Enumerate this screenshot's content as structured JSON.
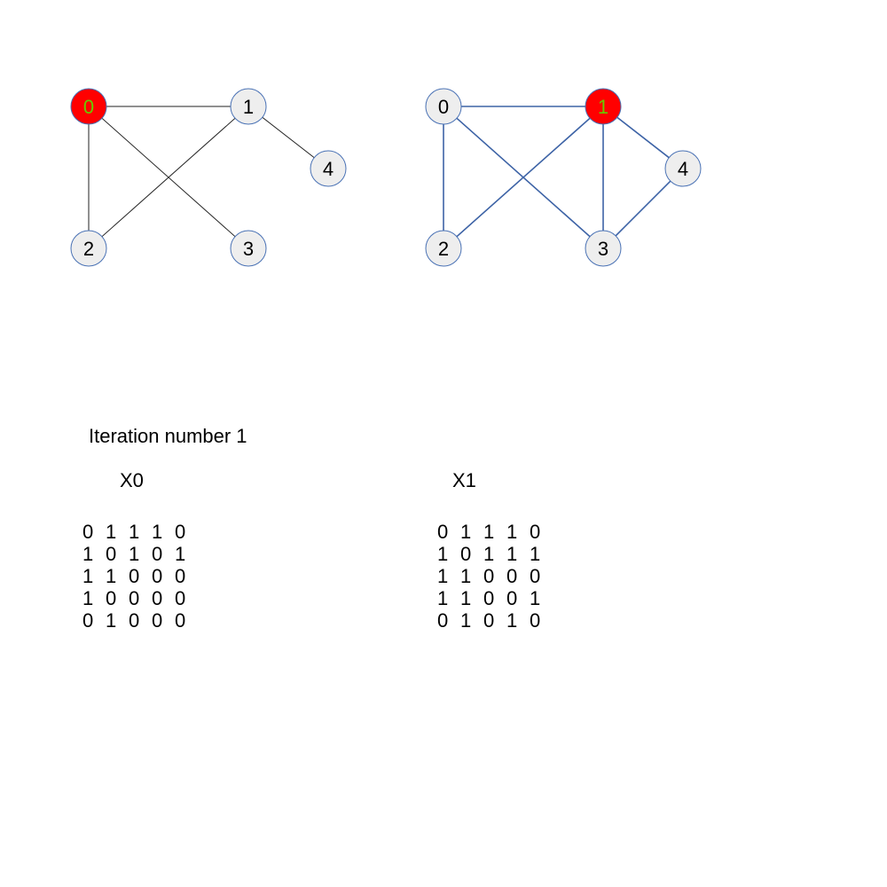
{
  "colors": {
    "background": "#ffffff",
    "node_fill": "#eeeeee",
    "node_stroke": "#4a72b5",
    "highlight_fill": "#ff0000",
    "highlight_text": "#66cc00",
    "edge_graph_a": "#222222",
    "edge_graph_b": "#3d63a6",
    "text": "#000000"
  },
  "graph_a": {
    "highlighted_node": "0",
    "nodes": [
      {
        "id": "0",
        "label": "0"
      },
      {
        "id": "1",
        "label": "1"
      },
      {
        "id": "2",
        "label": "2"
      },
      {
        "id": "3",
        "label": "3"
      },
      {
        "id": "4",
        "label": "4"
      }
    ],
    "edges": [
      [
        "0",
        "1"
      ],
      [
        "0",
        "2"
      ],
      [
        "0",
        "3"
      ],
      [
        "1",
        "2"
      ],
      [
        "1",
        "4"
      ]
    ]
  },
  "graph_b": {
    "highlighted_node": "1",
    "nodes": [
      {
        "id": "0",
        "label": "0"
      },
      {
        "id": "1",
        "label": "1"
      },
      {
        "id": "2",
        "label": "2"
      },
      {
        "id": "3",
        "label": "3"
      },
      {
        "id": "4",
        "label": "4"
      }
    ],
    "edges": [
      [
        "0",
        "1"
      ],
      [
        "0",
        "2"
      ],
      [
        "0",
        "3"
      ],
      [
        "1",
        "2"
      ],
      [
        "1",
        "3"
      ],
      [
        "1",
        "4"
      ],
      [
        "3",
        "4"
      ]
    ]
  },
  "iteration": {
    "title": "Iteration number 1"
  },
  "matrices": [
    {
      "title": "X0",
      "rows": [
        [
          "0",
          "1",
          "1",
          "1",
          "0"
        ],
        [
          "1",
          "0",
          "1",
          "0",
          "1"
        ],
        [
          "1",
          "1",
          "0",
          "0",
          "0"
        ],
        [
          "1",
          "0",
          "0",
          "0",
          "0"
        ],
        [
          "0",
          "1",
          "0",
          "0",
          "0"
        ]
      ]
    },
    {
      "title": "X1",
      "rows": [
        [
          "0",
          "1",
          "1",
          "1",
          "0"
        ],
        [
          "1",
          "0",
          "1",
          "1",
          "1"
        ],
        [
          "1",
          "1",
          "0",
          "0",
          "0"
        ],
        [
          "1",
          "1",
          "0",
          "0",
          "1"
        ],
        [
          "0",
          "1",
          "0",
          "1",
          "0"
        ]
      ]
    }
  ]
}
